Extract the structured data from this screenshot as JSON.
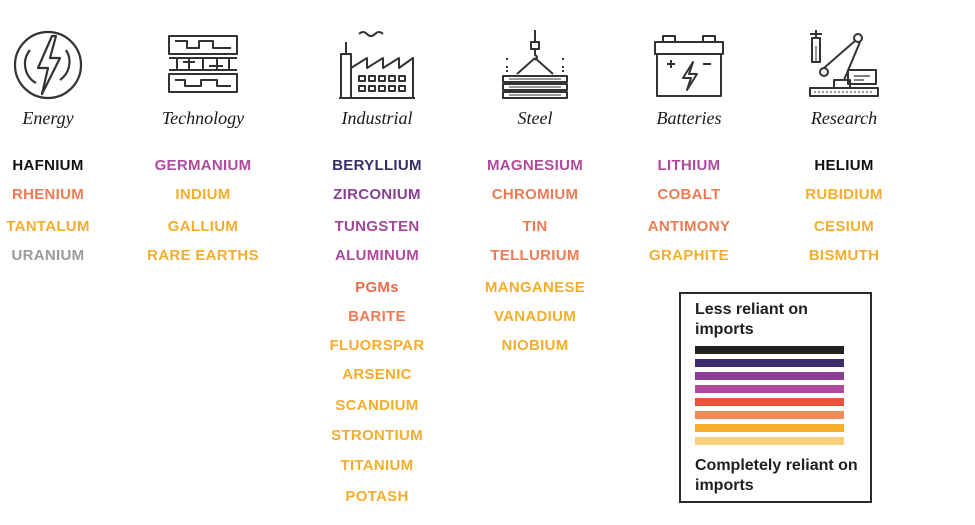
{
  "categories": [
    {
      "title": "Energy",
      "icon": "lightning-bolt-icon",
      "minerals": [
        {
          "name": "HAFNIUM",
          "color": "#111111"
        },
        {
          "name": "RHENIUM",
          "color": "#ef7b52"
        },
        {
          "name": "TANTALUM",
          "color": "#f4ad2c"
        },
        {
          "name": "URANIUM",
          "color": "#9a9a9a"
        }
      ]
    },
    {
      "title": "Technology",
      "icon": "circuit-board-icon",
      "minerals": [
        {
          "name": "GERMANIUM",
          "color": "#b04a9e"
        },
        {
          "name": "INDIUM",
          "color": "#f4ad2c"
        },
        {
          "name": "GALLIUM",
          "color": "#f4ad2c"
        },
        {
          "name": "RARE EARTHS",
          "color": "#f4ad2c"
        }
      ]
    },
    {
      "title": "Industrial",
      "icon": "factory-icon",
      "minerals": [
        {
          "name": "BERYLLIUM",
          "color": "#3b2c6b"
        },
        {
          "name": "ZIRCONIUM",
          "color": "#8a3f96"
        },
        {
          "name": "TUNGSTEN",
          "color": "#a4469b"
        },
        {
          "name": "ALUMINUM",
          "color": "#b04a9e"
        },
        {
          "name": "PGMs",
          "color": "#ef6a4a"
        },
        {
          "name": "BARITE",
          "color": "#ef7b52"
        },
        {
          "name": "FLUORSPAR",
          "color": "#f4ad2c"
        },
        {
          "name": "ARSENIC",
          "color": "#f4ad2c"
        },
        {
          "name": "SCANDIUM",
          "color": "#f4ad2c"
        },
        {
          "name": "STRONTIUM",
          "color": "#f4ad2c"
        },
        {
          "name": "TITANIUM",
          "color": "#f4ad2c"
        },
        {
          "name": "POTASH",
          "color": "#f4ad2c"
        }
      ]
    },
    {
      "title": "Steel",
      "icon": "steel-beams-crane-icon",
      "minerals": [
        {
          "name": "MAGNESIUM",
          "color": "#b04a9e"
        },
        {
          "name": "CHROMIUM",
          "color": "#ef7b52"
        },
        {
          "name": "TIN",
          "color": "#ef7b52"
        },
        {
          "name": "TELLURIUM",
          "color": "#ef7b52"
        },
        {
          "name": "MANGANESE",
          "color": "#f4ad2c"
        },
        {
          "name": "VANADIUM",
          "color": "#f4ad2c"
        },
        {
          "name": "NIOBIUM",
          "color": "#f4ad2c"
        }
      ]
    },
    {
      "title": "Batteries",
      "icon": "battery-icon",
      "minerals": [
        {
          "name": "LITHIUM",
          "color": "#b04a9e"
        },
        {
          "name": "COBALT",
          "color": "#ef7b52"
        },
        {
          "name": "ANTIMONY",
          "color": "#ef7b52"
        },
        {
          "name": "GRAPHITE",
          "color": "#f4ad2c"
        }
      ]
    },
    {
      "title": "Research",
      "icon": "lab-robot-arm-icon",
      "minerals": [
        {
          "name": "HELIUM",
          "color": "#111111"
        },
        {
          "name": "RUBIDIUM",
          "color": "#f4ad2c"
        },
        {
          "name": "CESIUM",
          "color": "#f4ad2c"
        },
        {
          "name": "BISMUTH",
          "color": "#f4ad2c"
        }
      ]
    }
  ],
  "legend": {
    "top_label": "Less reliant on imports",
    "bottom_label": "Completely reliant on imports",
    "scale_colors": [
      "#222222",
      "#3b2c6b",
      "#8a3f96",
      "#b04a9e",
      "#e8533a",
      "#ef8a5a",
      "#f4ad2c",
      "#f8d07a"
    ]
  }
}
